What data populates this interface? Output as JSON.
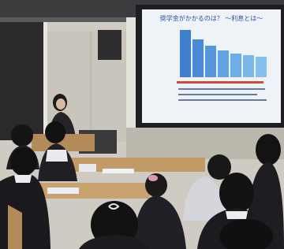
{
  "slide": {
    "title": "奨学金がかかるのは？ 〜利息とは〜"
  }
}
